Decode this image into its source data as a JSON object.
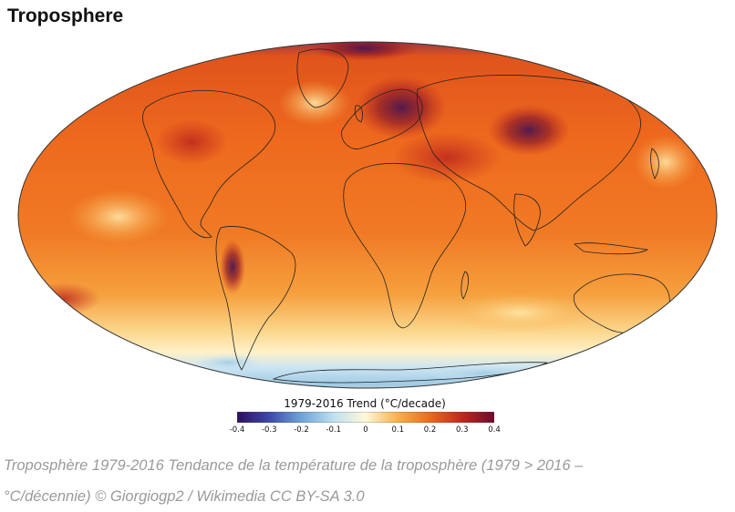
{
  "figure": {
    "title": "Troposphere"
  },
  "colorbar": {
    "title": "1979-2016 Trend (°C/decade)",
    "ticks": [
      "-0.4",
      "-0.3",
      "-0.2",
      "-0.1",
      "0",
      "0.1",
      "0.2",
      "0.3",
      "0.4"
    ],
    "stops": [
      "#2e0f5e",
      "#3e48a8",
      "#6fa3d6",
      "#bfe0ef",
      "#fff8d8",
      "#f7b04a",
      "#ea6a1c",
      "#c0261f",
      "#6e0a2e"
    ]
  },
  "caption": {
    "line1": "Troposphère 1979-2016 Tendance de la température de la troposphère (1979 > 2016 –",
    "line2": "°C/décennie) © Giorgiogp2 / Wikimedia CC BY-SA 3.0"
  },
  "map": {
    "projection": "Mollweide",
    "dominant_color": "#ef6a1c",
    "polar_color": "#a9d2ea"
  }
}
